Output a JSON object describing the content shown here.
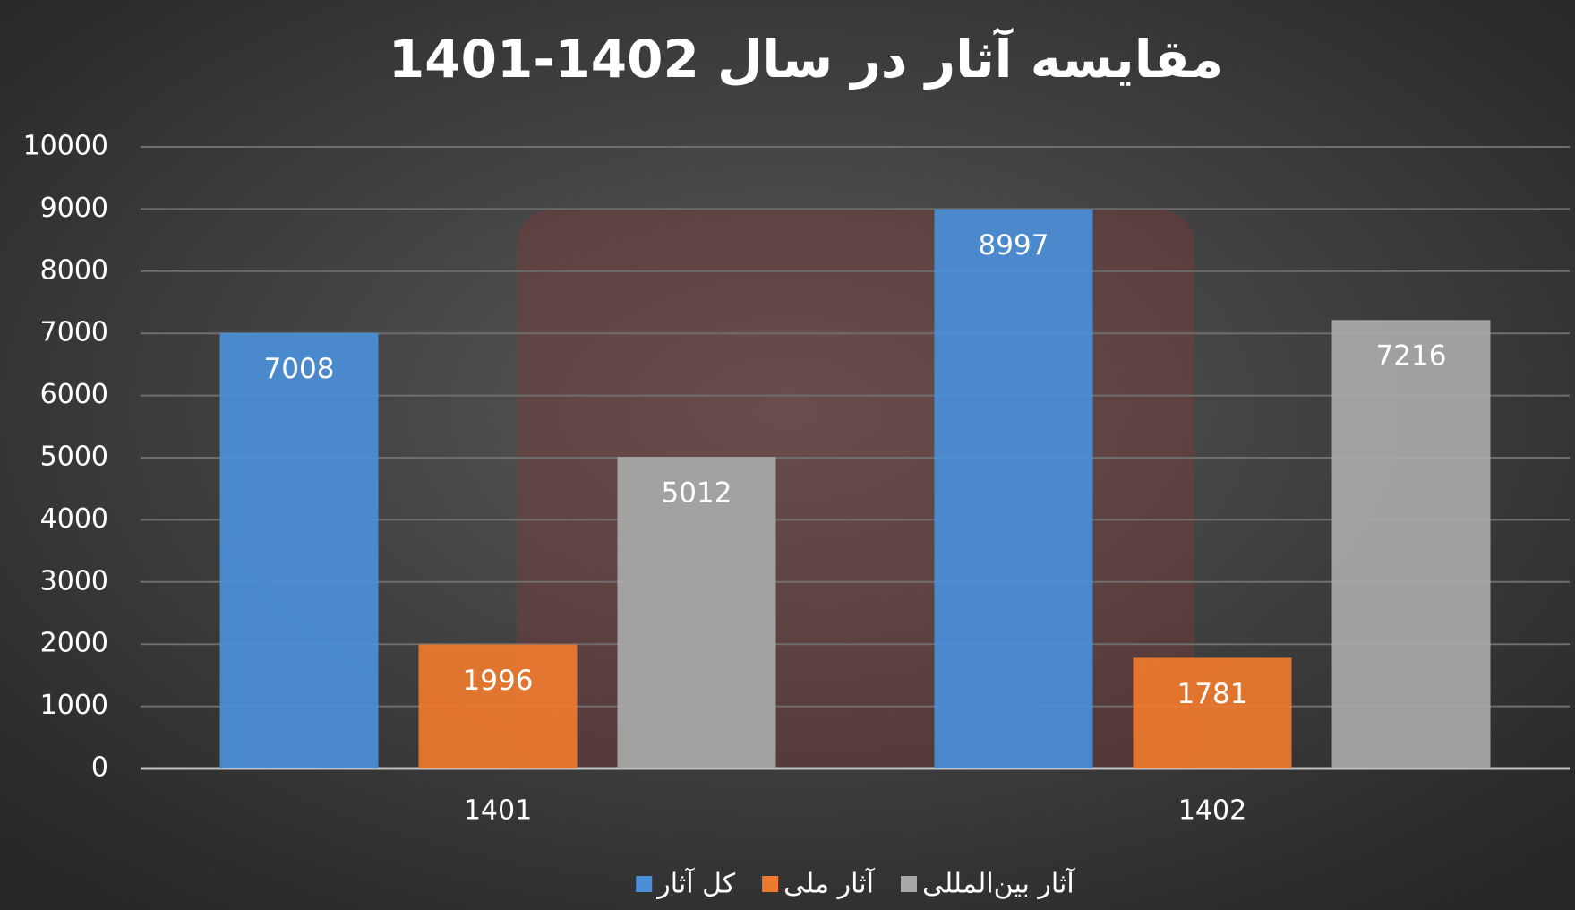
{
  "chart_data": {
    "type": "bar",
    "title": "مقایسه آثار در سال 1402-1401",
    "categories": [
      "1401",
      "1402"
    ],
    "series": [
      {
        "name": "کل آثار",
        "color": "#4a8fd8",
        "values": [
          7008,
          8997
        ]
      },
      {
        "name": "آثار ملی",
        "color": "#ee7a2e",
        "values": [
          1996,
          1781
        ]
      },
      {
        "name": "آثار بین‌المللی",
        "color": "#a9a9a9",
        "values": [
          5012,
          7216
        ]
      }
    ],
    "ylim": [
      0,
      10000
    ],
    "yticks": [
      0,
      1000,
      2000,
      3000,
      4000,
      5000,
      6000,
      7000,
      8000,
      9000,
      10000
    ],
    "grid": true,
    "legend": "bottom"
  }
}
